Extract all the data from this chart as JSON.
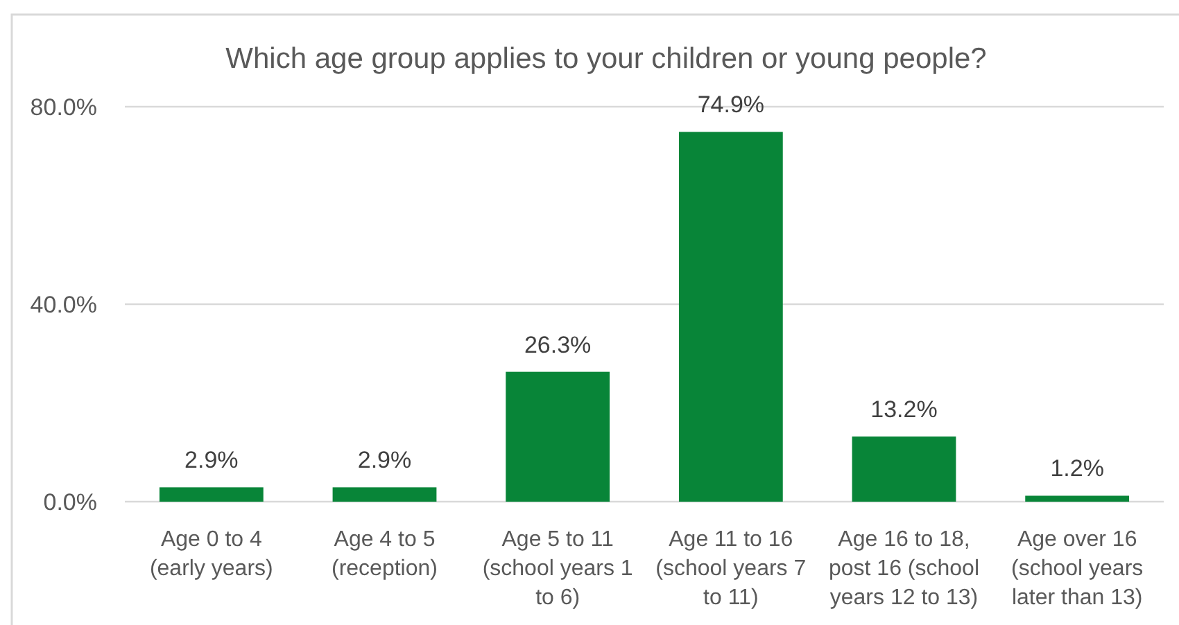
{
  "chart_data": {
    "type": "bar",
    "title": "Which age group applies to your children or young people?",
    "categories": [
      "Age 0 to 4 (early years)",
      "Age 4 to 5 (reception)",
      "Age 5 to 11 (school years 1 to 6)",
      "Age 11 to 16 (school years 7 to 11)",
      "Age 16 to 18, post 16 (school years 12 to 13)",
      "Age over 16 (school years later than 13)"
    ],
    "values": [
      2.9,
      2.9,
      26.3,
      74.9,
      13.2,
      1.2
    ],
    "value_labels": [
      "2.9%",
      "2.9%",
      "26.3%",
      "74.9%",
      "13.2%",
      "1.2%"
    ],
    "color": "#088538",
    "ylim": [
      0,
      80
    ],
    "yticks": [
      {
        "value": 0,
        "label": "0.0%"
      },
      {
        "value": 40,
        "label": "40.0%"
      },
      {
        "value": 80,
        "label": "80.0%"
      }
    ],
    "grid": "y"
  }
}
